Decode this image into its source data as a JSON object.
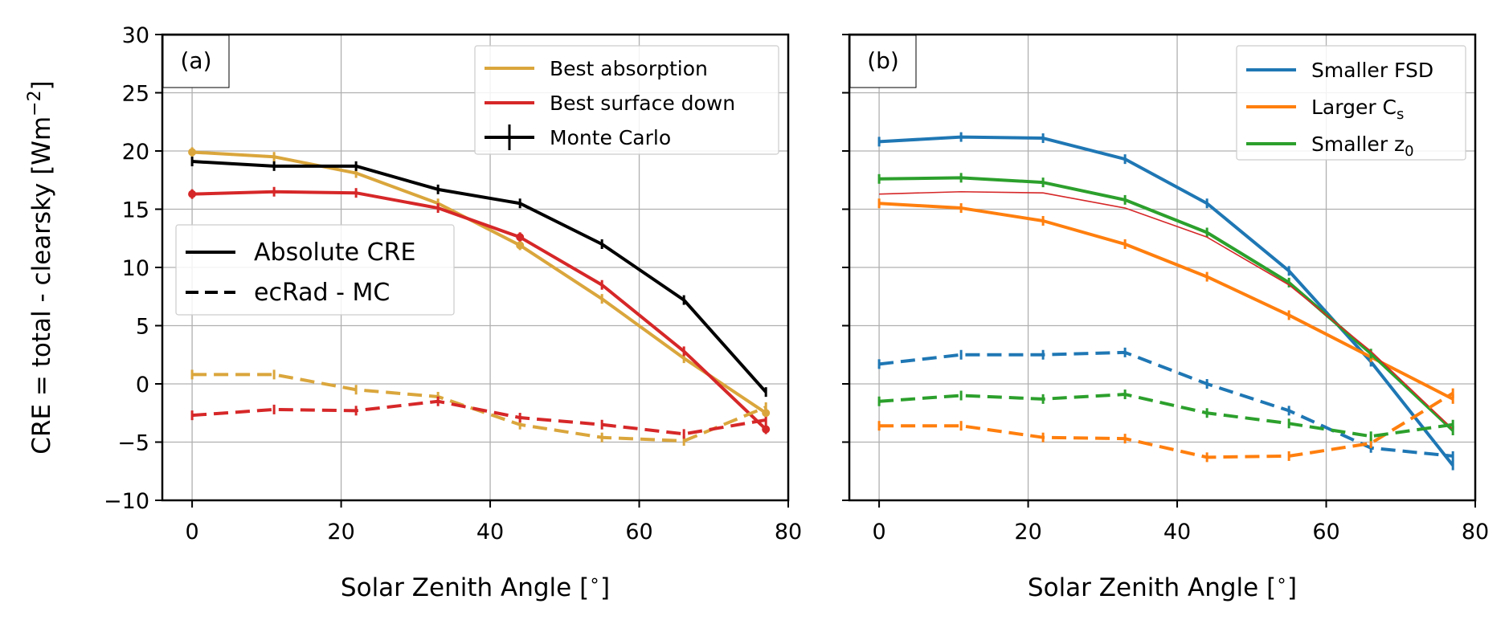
{
  "chart_data": [
    {
      "type": "line",
      "panel_label": "(a)",
      "xlabel": "Solar Zenith Angle [$^\\circ$]",
      "xlabel_parts": [
        "Solar Zenith Angle [",
        "∘",
        "]"
      ],
      "ylabel": "CRE = total - clearsky [Wm$^{-2}$]",
      "ylabel_parts": [
        "CRE = total - clearsky [Wm",
        "−2",
        "]"
      ],
      "xlim": [
        -4,
        80
      ],
      "ylim": [
        -10,
        30
      ],
      "xticks": [
        0,
        20,
        40,
        60,
        80
      ],
      "yticks": [
        -10,
        -5,
        0,
        5,
        10,
        15,
        20,
        25,
        30
      ],
      "ytick_labels": [
        "−10",
        "−5",
        "0",
        "5",
        "10",
        "15",
        "20",
        "25",
        "30"
      ],
      "grid": true,
      "legend_placement": "top-right",
      "legend": [
        {
          "label": "Best absorption",
          "color": "#daa63c",
          "style": "solid"
        },
        {
          "label": "Best surface down",
          "color": "#d62728",
          "style": "solid"
        },
        {
          "label": "Monte Carlo",
          "color": "#000000",
          "style": "errorbar"
        }
      ],
      "style_legend_placement": "center-left",
      "style_legend": [
        {
          "label": "Absolute CRE",
          "style": "solid"
        },
        {
          "label": "ecRad - MC",
          "style": "dashed"
        }
      ],
      "x": [
        0,
        11,
        22,
        33,
        44,
        55,
        66,
        77
      ],
      "series": [
        {
          "name": "Best absorption",
          "color": "#daa63c",
          "style": "solid",
          "values": [
            19.9,
            19.5,
            18.1,
            15.5,
            11.9,
            7.3,
            2.2,
            -2.5
          ]
        },
        {
          "name": "Best surface down",
          "color": "#d62728",
          "style": "solid",
          "values": [
            16.3,
            16.5,
            16.4,
            15.1,
            12.6,
            8.5,
            2.8,
            -3.9
          ]
        },
        {
          "name": "Monte Carlo",
          "color": "#000000",
          "style": "solid",
          "values": [
            19.1,
            18.7,
            18.7,
            16.7,
            15.5,
            12.0,
            7.2,
            -0.7
          ]
        },
        {
          "name": "Best absorption",
          "color": "#daa63c",
          "style": "dashed",
          "values": [
            0.8,
            0.8,
            -0.5,
            -1.1,
            -3.5,
            -4.6,
            -4.9,
            -2.0
          ]
        },
        {
          "name": "Best surface down",
          "color": "#d62728",
          "style": "dashed",
          "values": [
            -2.7,
            -2.2,
            -2.3,
            -1.5,
            -2.9,
            -3.5,
            -4.3,
            -3.1
          ]
        }
      ]
    },
    {
      "type": "line",
      "panel_label": "(b)",
      "xlabel": "Solar Zenith Angle [$^\\circ$]",
      "xlabel_parts": [
        "Solar Zenith Angle [",
        "∘",
        "]"
      ],
      "xlim": [
        -4,
        80
      ],
      "ylim": [
        -10,
        30
      ],
      "xticks": [
        0,
        20,
        40,
        60,
        80
      ],
      "grid": true,
      "legend_placement": "top-right",
      "legend": [
        {
          "label": "Smaller FSD",
          "color": "#1f77b4",
          "style": "solid"
        },
        {
          "label": "Larger C_s",
          "label_main": "Larger C",
          "label_sub": "s",
          "color": "#ff7f0e",
          "style": "solid"
        },
        {
          "label": "Smaller z_0",
          "label_main": "Smaller z",
          "label_sub": "0",
          "color": "#2ca02c",
          "style": "solid"
        }
      ],
      "x": [
        0,
        11,
        22,
        33,
        44,
        55,
        66,
        77
      ],
      "series": [
        {
          "name": "Smaller FSD",
          "color": "#1f77b4",
          "style": "solid",
          "values": [
            20.8,
            21.2,
            21.1,
            19.3,
            15.5,
            9.7,
            1.9,
            -7.0
          ]
        },
        {
          "name": "Larger C_s",
          "color": "#ff7f0e",
          "style": "solid",
          "values": [
            15.5,
            15.1,
            14.0,
            12.0,
            9.2,
            5.9,
            2.3,
            -1.3
          ]
        },
        {
          "name": "Smaller z_0",
          "color": "#2ca02c",
          "style": "solid",
          "values": [
            17.6,
            17.7,
            17.3,
            15.8,
            13.0,
            8.7,
            2.6,
            -4.0
          ]
        },
        {
          "name": "",
          "color": "#d62728",
          "style": "thin",
          "values": [
            16.3,
            16.5,
            16.4,
            15.1,
            12.6,
            8.5,
            2.8,
            -3.9
          ]
        },
        {
          "name": "Smaller FSD",
          "color": "#1f77b4",
          "style": "dashed",
          "values": [
            1.7,
            2.5,
            2.5,
            2.7,
            0.0,
            -2.3,
            -5.5,
            -6.2
          ]
        },
        {
          "name": "Larger C_s",
          "color": "#ff7f0e",
          "style": "dashed",
          "values": [
            -3.6,
            -3.6,
            -4.6,
            -4.7,
            -6.3,
            -6.2,
            -5.1,
            -0.8
          ]
        },
        {
          "name": "Smaller z_0",
          "color": "#2ca02c",
          "style": "dashed",
          "values": [
            -1.5,
            -1.0,
            -1.3,
            -0.9,
            -2.5,
            -3.4,
            -4.5,
            -3.5
          ]
        }
      ]
    }
  ]
}
